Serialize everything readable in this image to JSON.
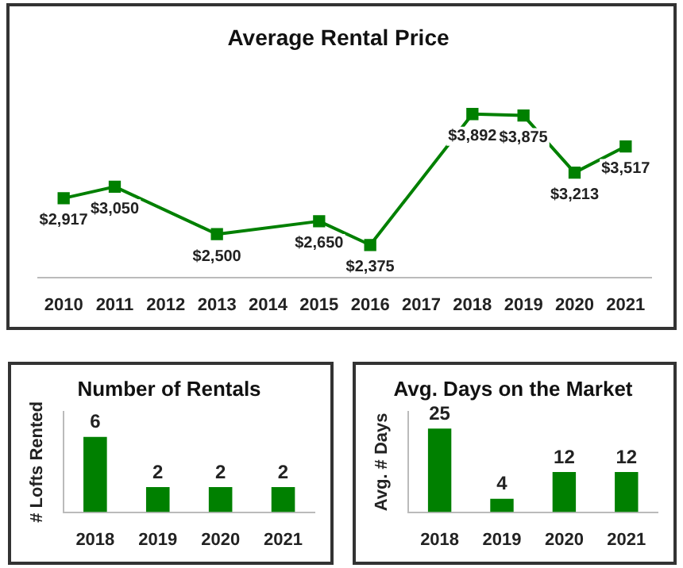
{
  "chart_data": [
    {
      "type": "line",
      "title": "Average Rental Price",
      "x": [
        2010,
        2011,
        2013,
        2015,
        2016,
        2018,
        2019,
        2020,
        2021
      ],
      "xlim": [
        2009.5,
        2021.5
      ],
      "xticks": [
        2010,
        2011,
        2012,
        2013,
        2014,
        2015,
        2016,
        2017,
        2018,
        2019,
        2020,
        2021
      ],
      "series": [
        {
          "color": "#008000",
          "values": [
            2917,
            3050,
            2500,
            2650,
            2375,
            3892,
            3875,
            3213,
            3517
          ],
          "value_labels": [
            "$2,917",
            "$3,050",
            "$2,500",
            "$2,650",
            "$2,375",
            "$3,892",
            "$3,875",
            "$3,213",
            "$3,517"
          ]
        }
      ],
      "marker": "square",
      "line_style": "solid",
      "tick_labels": "x",
      "grid": false,
      "legend": false
    },
    {
      "type": "bar",
      "title": "Number of Rentals",
      "ylabel": "# Lofts Rented",
      "categories": [
        "2018",
        "2019",
        "2020",
        "2021"
      ],
      "series": [
        {
          "color": "#008000",
          "values": [
            6,
            2,
            2,
            2
          ]
        }
      ],
      "data_labels": true,
      "tick_labels": "x",
      "grid": false,
      "legend": false
    },
    {
      "type": "bar",
      "title": "Avg. Days on the Market",
      "ylabel": "Avg. # Days",
      "categories": [
        "2018",
        "2019",
        "2020",
        "2021"
      ],
      "series": [
        {
          "color": "#008000",
          "values": [
            25,
            4,
            12,
            12
          ]
        }
      ],
      "data_labels": true,
      "tick_labels": "x",
      "grid": false,
      "legend": false
    }
  ]
}
